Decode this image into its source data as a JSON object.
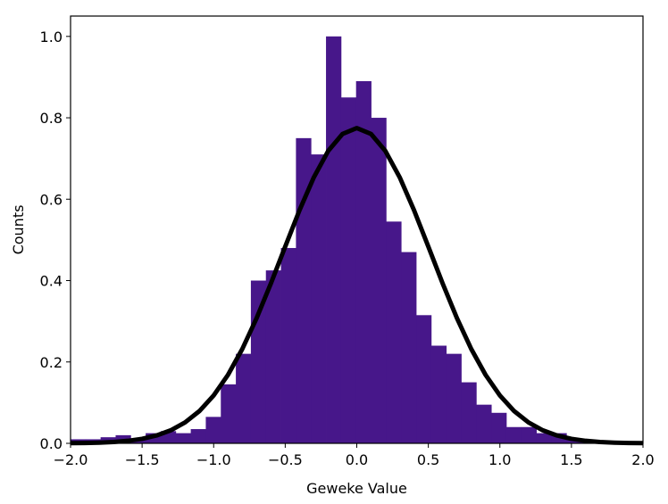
{
  "chart_data": {
    "type": "bar",
    "title": "",
    "xlabel": "Geweke Value",
    "ylabel": "Counts",
    "xlim": [
      -2.0,
      2.0
    ],
    "ylim": [
      0.0,
      1.05
    ],
    "grid": false,
    "bar_color": "#47178a",
    "curve_color": "#000000",
    "x_ticks": [
      -2.0,
      -1.5,
      -1.0,
      -0.5,
      0.0,
      0.5,
      1.0,
      1.5,
      2.0
    ],
    "x_tick_labels": [
      "−2.0",
      "−1.5",
      "−1.0",
      "−0.5",
      "0.0",
      "0.5",
      "1.0",
      "1.5",
      "2.0"
    ],
    "y_ticks": [
      0.0,
      0.2,
      0.4,
      0.6,
      0.8,
      1.0
    ],
    "y_tick_labels": [
      "0.0",
      "0.2",
      "0.4",
      "0.6",
      "0.8",
      "1.0"
    ],
    "histogram": {
      "bin_edges": [
        -2.0,
        -1.895,
        -1.79,
        -1.685,
        -1.58,
        -1.475,
        -1.37,
        -1.265,
        -1.16,
        -1.055,
        -0.95,
        -0.845,
        -0.74,
        -0.635,
        -0.53,
        -0.425,
        -0.32,
        -0.215,
        -0.11,
        -0.005,
        0.1,
        0.205,
        0.31,
        0.415,
        0.52,
        0.625,
        0.73,
        0.835,
        0.94,
        1.045,
        1.15,
        1.255,
        1.36,
        1.465,
        1.57,
        1.675,
        1.78,
        1.885,
        1.99
      ],
      "values": [
        0.01,
        0.01,
        0.015,
        0.02,
        0.01,
        0.025,
        0.03,
        0.025,
        0.035,
        0.065,
        0.145,
        0.22,
        0.4,
        0.425,
        0.48,
        0.75,
        0.71,
        1.0,
        0.85,
        0.89,
        0.8,
        0.545,
        0.47,
        0.315,
        0.24,
        0.22,
        0.15,
        0.095,
        0.075,
        0.04,
        0.04,
        0.025,
        0.025,
        0.01,
        0.005,
        0.003,
        0.002,
        0.001
      ]
    },
    "curve": {
      "name": "",
      "type": "normal-pdf",
      "mean": 0.0,
      "std": 0.515
    }
  }
}
